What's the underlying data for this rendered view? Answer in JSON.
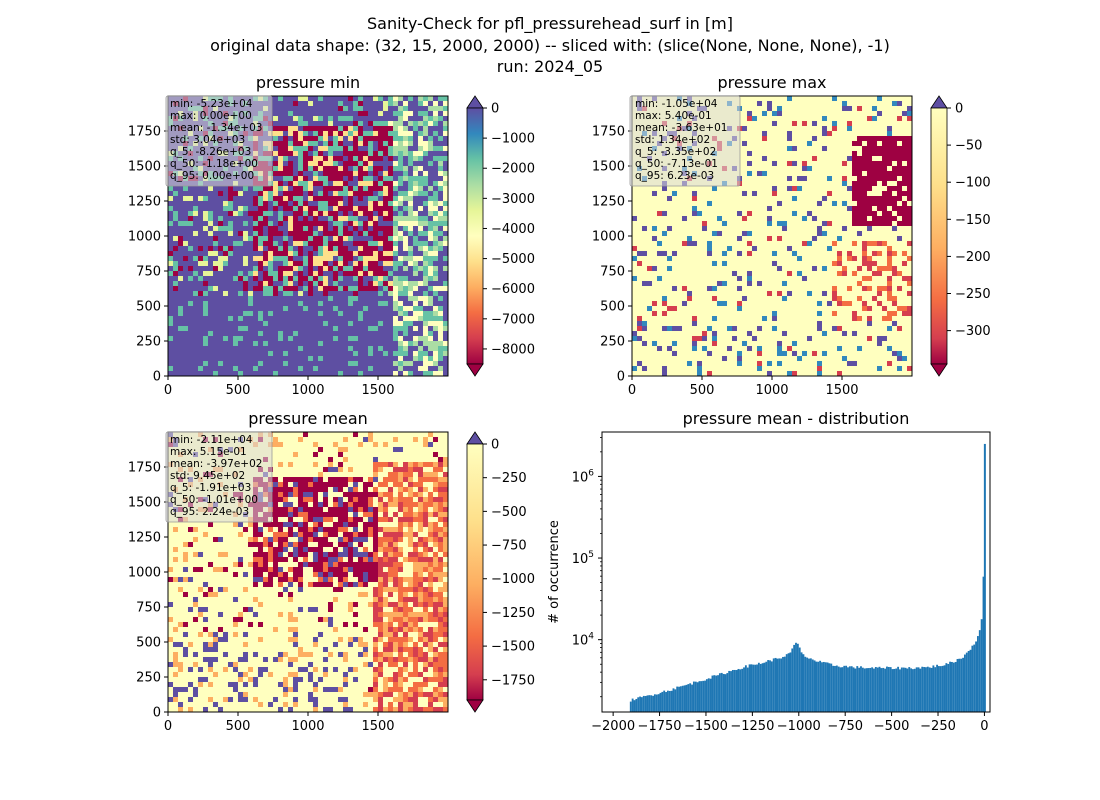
{
  "figure": {
    "title_lines": [
      "Sanity-Check for pfl_pressurehead_surf in [m]",
      "original data shape: (32, 15, 2000, 2000) -- sliced with: (slice(None, None, None), -1)",
      "run: 2024_05"
    ]
  },
  "colors": {
    "spectral": [
      "#9e0142",
      "#d53e4f",
      "#f46d43",
      "#fdae61",
      "#fee08b",
      "#ffffbf",
      "#e6f598",
      "#abdda4",
      "#66c2a5",
      "#3288bd",
      "#5e4fa2"
    ],
    "hist_bar": "#1f77b4"
  },
  "chart_data": [
    {
      "type": "heatmap",
      "title": "pressure min",
      "x_ticks": [
        "0",
        "500",
        "1000",
        "1500"
      ],
      "y_ticks": [
        "0",
        "250",
        "500",
        "750",
        "1000",
        "1250",
        "1500",
        "1750"
      ],
      "colorbar": {
        "range": [
          -8500,
          0
        ],
        "ticks": [
          "0",
          "−1000",
          "−2000",
          "−3000",
          "−4000",
          "−5000",
          "−6000",
          "−7000",
          "−8000"
        ],
        "tick_values": [
          0,
          -1000,
          -2000,
          -3000,
          -4000,
          -5000,
          -6000,
          -7000,
          -8000
        ],
        "extend": "both"
      },
      "stats": [
        "min: -5.23e+04",
        "max: 0.00e+00",
        "mean: -1.34e+03",
        "std: 3.04e+03",
        "q_5: -8.26e+03",
        "q_50: -1.18e+00",
        "q_95: 0.00e+00"
      ]
    },
    {
      "type": "heatmap",
      "title": "pressure max",
      "x_ticks": [
        "0",
        "500",
        "1000",
        "1500"
      ],
      "y_ticks": [
        "0",
        "250",
        "500",
        "750",
        "1000",
        "1250",
        "1500",
        "1750"
      ],
      "colorbar": {
        "range": [
          -345,
          0
        ],
        "ticks": [
          "0",
          "−50",
          "−100",
          "−150",
          "−200",
          "−250",
          "−300"
        ],
        "tick_values": [
          0,
          -50,
          -100,
          -150,
          -200,
          -250,
          -300
        ],
        "extend": "both"
      },
      "stats": [
        "min: -1.05e+04",
        "max: 5.40e-01",
        "mean: -3.63e+01",
        "std: 1.34e+02",
        "q_5: -3.35e+02",
        "q_50: -7.13e-01",
        "q_95: 6.23e-03"
      ]
    },
    {
      "type": "heatmap",
      "title": "pressure mean",
      "x_ticks": [
        "0",
        "500",
        "1000",
        "1500"
      ],
      "y_ticks": [
        "0",
        "250",
        "500",
        "750",
        "1000",
        "1250",
        "1500",
        "1750"
      ],
      "colorbar": {
        "range": [
          -1900,
          0
        ],
        "ticks": [
          "0",
          "−250",
          "−500",
          "−750",
          "−1000",
          "−1250",
          "−1500",
          "−1750"
        ],
        "tick_values": [
          0,
          -250,
          -500,
          -750,
          -1000,
          -1250,
          -1500,
          -1750
        ],
        "extend": "both"
      },
      "stats": [
        "min: -2.11e+04",
        "max: 5.15e-01",
        "mean: -3.97e+02",
        "std: 9.45e+02",
        "q_5: -1.91e+03",
        "q_50: -1.01e+00",
        "q_95: 2.24e-03"
      ]
    },
    {
      "type": "bar",
      "title": "pressure mean - distribution",
      "ylabel": "# of occurrence",
      "y_scale": "log",
      "x_range": [
        -2060,
        30
      ],
      "y_range": [
        1300,
        3500000
      ],
      "x_ticks": [
        "−2000",
        "−1750",
        "−1500",
        "−1250",
        "−1000",
        "−750",
        "−500",
        "−250",
        "0"
      ],
      "x_tick_values": [
        -2000,
        -1750,
        -1500,
        -1250,
        -1000,
        -750,
        -500,
        -250,
        0
      ],
      "y_ticks": [
        "10^4",
        "10^5",
        "10^6"
      ],
      "y_tick_values": [
        10000,
        100000,
        1000000
      ],
      "x": [
        -1910,
        -1700,
        -1500,
        -1300,
        -1200,
        -1100,
        -1050,
        -1010,
        -980,
        -900,
        -800,
        -700,
        -600,
        -500,
        -400,
        -300,
        -200,
        -120,
        -80,
        -40,
        -20,
        -10,
        -5,
        -2
      ],
      "y": [
        1800,
        2400,
        3300,
        4600,
        5200,
        6000,
        6700,
        9500,
        6500,
        5400,
        4800,
        4600,
        4500,
        4500,
        4500,
        4600,
        5000,
        6000,
        7500,
        10000,
        15000,
        20000,
        60000,
        2500000
      ]
    }
  ]
}
